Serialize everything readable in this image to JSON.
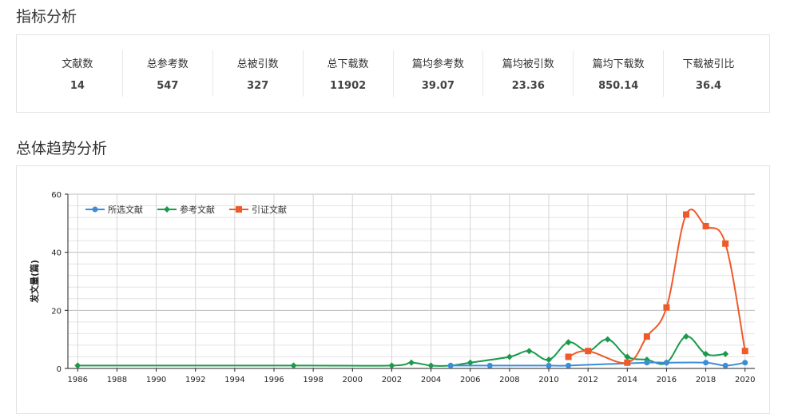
{
  "section1_title": "指标分析",
  "metrics": [
    {
      "label": "文献数",
      "value": "14"
    },
    {
      "label": "总参考数",
      "value": "547"
    },
    {
      "label": "总被引数",
      "value": "327"
    },
    {
      "label": "总下载数",
      "value": "11902"
    },
    {
      "label": "篇均参考数",
      "value": "39.07"
    },
    {
      "label": "篇均被引数",
      "value": "23.36"
    },
    {
      "label": "篇均下载数",
      "value": "850.14"
    },
    {
      "label": "下载被引比",
      "value": "36.4"
    }
  ],
  "section2_title": "总体趋势分析",
  "chart_data": {
    "type": "line",
    "xlabel": "",
    "ylabel": "发文量(篇)",
    "xlim": [
      1985.5,
      2020.5
    ],
    "ylim": [
      0,
      60
    ],
    "x_ticks": [
      "1986",
      "1988",
      "1990",
      "1992",
      "1994",
      "1996",
      "1998",
      "2000",
      "2002",
      "2004",
      "2006",
      "2008",
      "2010",
      "2012",
      "2014",
      "2016",
      "2018",
      "2020"
    ],
    "y_ticks": [
      "0",
      "20",
      "40",
      "60"
    ],
    "grid": true,
    "legend_position": "top-left",
    "series": [
      {
        "name": "所选文献",
        "color": "#3c8dd9",
        "marker": "circle",
        "x": [
          2005,
          2007,
          2010,
          2011,
          2015,
          2016,
          2018,
          2019,
          2020
        ],
        "y": [
          1,
          1,
          1,
          1,
          2,
          2,
          2,
          1,
          2
        ]
      },
      {
        "name": "参考文献",
        "color": "#1a9a4a",
        "marker": "diamond",
        "x": [
          1986,
          1997,
          2002,
          2003,
          2004,
          2005,
          2006,
          2008,
          2009,
          2010,
          2011,
          2012,
          2013,
          2014,
          2015,
          2016,
          2017,
          2018,
          2019
        ],
        "y": [
          1,
          1,
          1,
          2,
          1,
          1,
          2,
          4,
          6,
          3,
          9,
          6,
          10,
          4,
          3,
          2,
          11,
          5,
          5
        ]
      },
      {
        "name": "引证文献",
        "color": "#ee5a2a",
        "marker": "square",
        "x": [
          2011,
          2012,
          2014,
          2015,
          2016,
          2017,
          2018,
          2019,
          2020
        ],
        "y": [
          4,
          6,
          2,
          11,
          21,
          53,
          49,
          43,
          6
        ]
      }
    ]
  }
}
